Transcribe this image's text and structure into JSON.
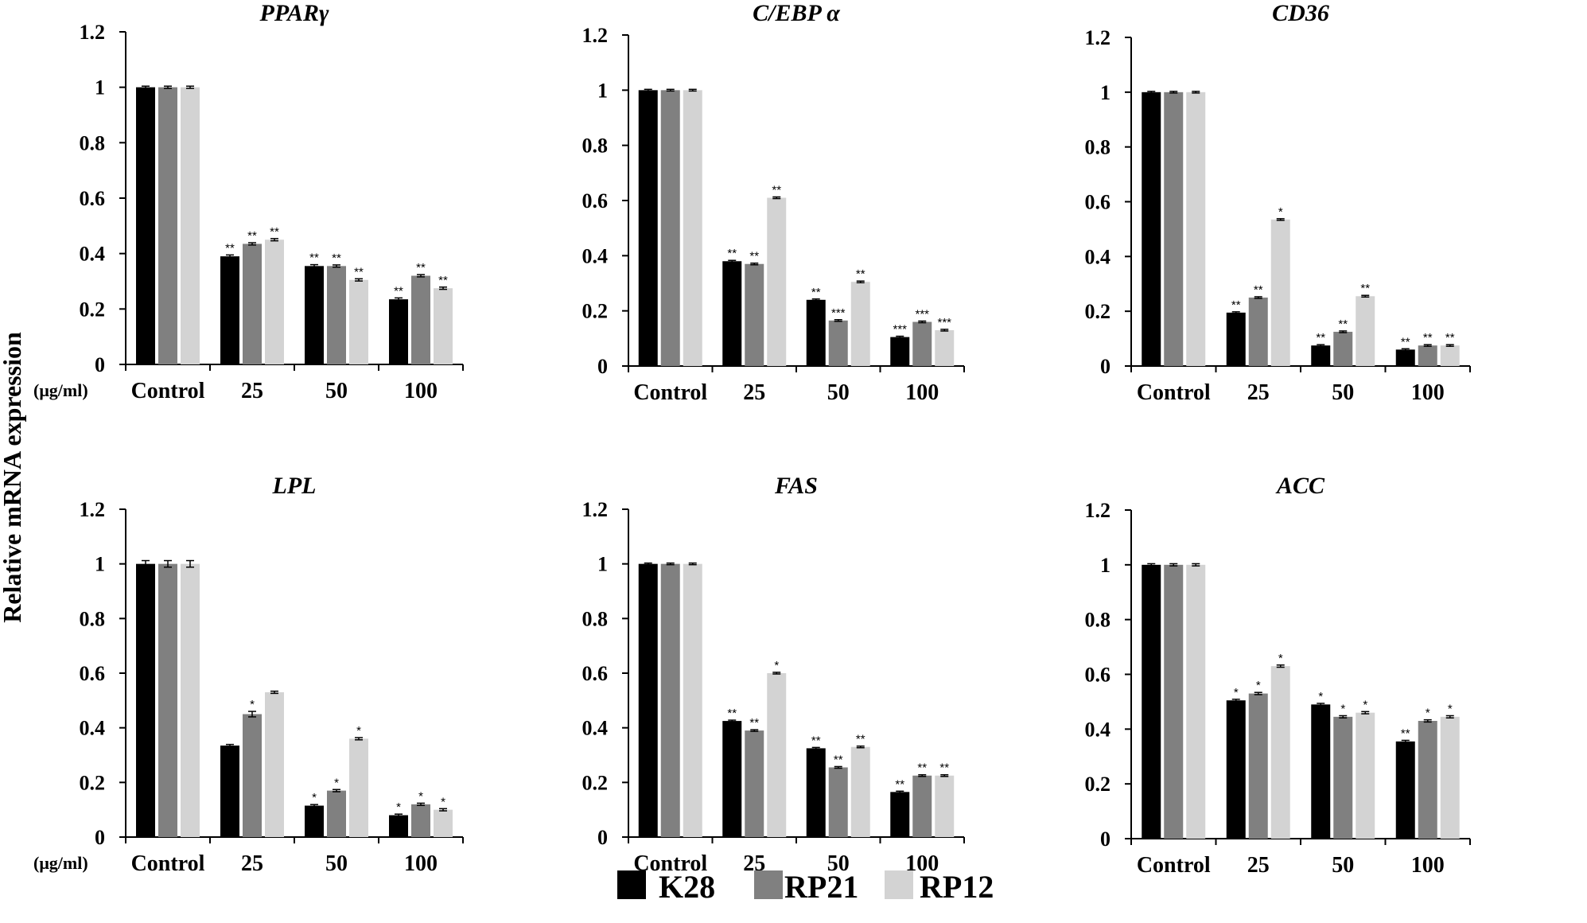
{
  "chart_data": [
    {
      "type": "bar",
      "title": "PPARγ",
      "ylim": [
        0,
        1.2
      ],
      "yticks": [
        "0",
        "0.2",
        "0.4",
        "0.6",
        "0.8",
        "1",
        "1.2"
      ],
      "unit_label": "(μg/ml)",
      "categories": [
        "Control",
        "25",
        "50",
        "100"
      ],
      "series": [
        {
          "name": "K28",
          "values": [
            1.0,
            0.39,
            0.355,
            0.235
          ],
          "errors": [
            0.004,
            0.005,
            0.005,
            0.005
          ],
          "sig": [
            "",
            "**",
            "**",
            "**"
          ]
        },
        {
          "name": "RP21",
          "values": [
            1.0,
            0.435,
            0.355,
            0.32
          ],
          "errors": [
            0.004,
            0.004,
            0.004,
            0.004
          ],
          "sig": [
            "",
            "**",
            "**",
            "**"
          ]
        },
        {
          "name": "RP12",
          "values": [
            1.0,
            0.45,
            0.305,
            0.275
          ],
          "errors": [
            0.004,
            0.004,
            0.004,
            0.004
          ],
          "sig": [
            "",
            "**",
            "**",
            "**"
          ]
        }
      ]
    },
    {
      "type": "bar",
      "title": "C/EBP α",
      "ylim": [
        0,
        1.2
      ],
      "yticks": [
        "0",
        "0.2",
        "0.4",
        "0.6",
        "0.8",
        "1",
        "1.2"
      ],
      "unit_label": "",
      "categories": [
        "Control",
        "25",
        "50",
        "100"
      ],
      "series": [
        {
          "name": "K28",
          "values": [
            1.0,
            0.38,
            0.24,
            0.105
          ],
          "errors": [
            0.003,
            0.003,
            0.003,
            0.003
          ],
          "sig": [
            "",
            "**",
            "**",
            "***"
          ]
        },
        {
          "name": "RP21",
          "values": [
            1.0,
            0.37,
            0.165,
            0.16
          ],
          "errors": [
            0.003,
            0.003,
            0.003,
            0.003
          ],
          "sig": [
            "",
            "**",
            "***",
            "***"
          ]
        },
        {
          "name": "RP12",
          "values": [
            1.0,
            0.61,
            0.305,
            0.13
          ],
          "errors": [
            0.003,
            0.003,
            0.003,
            0.003
          ],
          "sig": [
            "",
            "**",
            "**",
            "***"
          ]
        }
      ]
    },
    {
      "type": "bar",
      "title": "CD36",
      "ylim": [
        0,
        1.2
      ],
      "yticks": [
        "0",
        "0.2",
        "0.4",
        "0.6",
        "0.8",
        "1",
        "1.2"
      ],
      "unit_label": "",
      "categories": [
        "Control",
        "25",
        "50",
        "100"
      ],
      "series": [
        {
          "name": "K28",
          "values": [
            1.0,
            0.195,
            0.075,
            0.06
          ],
          "errors": [
            0.003,
            0.003,
            0.003,
            0.003
          ],
          "sig": [
            "",
            "**",
            "**",
            "**"
          ]
        },
        {
          "name": "RP21",
          "values": [
            1.0,
            0.25,
            0.125,
            0.075
          ],
          "errors": [
            0.003,
            0.003,
            0.003,
            0.003
          ],
          "sig": [
            "",
            "**",
            "**",
            "**"
          ]
        },
        {
          "name": "RP12",
          "values": [
            1.0,
            0.535,
            0.255,
            0.075
          ],
          "errors": [
            0.003,
            0.003,
            0.003,
            0.003
          ],
          "sig": [
            "",
            "*",
            "**",
            "**"
          ]
        }
      ]
    },
    {
      "type": "bar",
      "title": "LPL",
      "ylim": [
        0,
        1.2
      ],
      "yticks": [
        "0",
        "0.2",
        "0.4",
        "0.6",
        "0.8",
        "1",
        "1.2"
      ],
      "unit_label": "(μg/ml)",
      "categories": [
        "Control",
        "25",
        "50",
        "100"
      ],
      "series": [
        {
          "name": "K28",
          "values": [
            1.0,
            0.335,
            0.115,
            0.08
          ],
          "errors": [
            0.012,
            0.004,
            0.004,
            0.004
          ],
          "sig": [
            "",
            "",
            "*",
            "*"
          ]
        },
        {
          "name": "RP21",
          "values": [
            1.0,
            0.45,
            0.17,
            0.12
          ],
          "errors": [
            0.012,
            0.01,
            0.004,
            0.004
          ],
          "sig": [
            "",
            "*",
            "*",
            "*"
          ]
        },
        {
          "name": "RP12",
          "values": [
            1.0,
            0.53,
            0.36,
            0.1
          ],
          "errors": [
            0.012,
            0.004,
            0.004,
            0.004
          ],
          "sig": [
            "",
            "",
            "*",
            "*"
          ]
        }
      ]
    },
    {
      "type": "bar",
      "title": "FAS",
      "ylim": [
        0,
        1.2
      ],
      "yticks": [
        "0",
        "0.2",
        "0.4",
        "0.6",
        "0.8",
        "1",
        "1.2"
      ],
      "unit_label": "",
      "categories": [
        "Control",
        "25",
        "50",
        "100"
      ],
      "series": [
        {
          "name": "K28",
          "values": [
            1.0,
            0.425,
            0.325,
            0.165
          ],
          "errors": [
            0.003,
            0.003,
            0.003,
            0.003
          ],
          "sig": [
            "",
            "**",
            "**",
            "**"
          ]
        },
        {
          "name": "RP21",
          "values": [
            1.0,
            0.39,
            0.255,
            0.225
          ],
          "errors": [
            0.003,
            0.003,
            0.003,
            0.003
          ],
          "sig": [
            "",
            "**",
            "**",
            "**"
          ]
        },
        {
          "name": "RP12",
          "values": [
            1.0,
            0.6,
            0.33,
            0.225
          ],
          "errors": [
            0.003,
            0.003,
            0.003,
            0.003
          ],
          "sig": [
            "",
            "*",
            "**",
            "**"
          ]
        }
      ]
    },
    {
      "type": "bar",
      "title": "ACC",
      "ylim": [
        0,
        1.2
      ],
      "yticks": [
        "0",
        "0.2",
        "0.4",
        "0.6",
        "0.8",
        "1",
        "1.2"
      ],
      "unit_label": "",
      "categories": [
        "Control",
        "25",
        "50",
        "100"
      ],
      "series": [
        {
          "name": "K28",
          "values": [
            1.0,
            0.505,
            0.49,
            0.355
          ],
          "errors": [
            0.004,
            0.004,
            0.004,
            0.004
          ],
          "sig": [
            "",
            "*",
            "*",
            "**"
          ]
        },
        {
          "name": "RP21",
          "values": [
            1.0,
            0.53,
            0.445,
            0.43
          ],
          "errors": [
            0.004,
            0.004,
            0.004,
            0.004
          ],
          "sig": [
            "",
            "*",
            "*",
            "*"
          ]
        },
        {
          "name": "RP12",
          "values": [
            1.0,
            0.63,
            0.46,
            0.445
          ],
          "errors": [
            0.004,
            0.004,
            0.004,
            0.004
          ],
          "sig": [
            "",
            "*",
            "*",
            "*"
          ]
        }
      ]
    }
  ],
  "ylabel": "Relative mRNA expression",
  "legend": [
    {
      "name": "K28",
      "color": "#000000"
    },
    {
      "name": "RP21",
      "color": "#808080"
    },
    {
      "name": "RP12",
      "color": "#d3d3d3"
    }
  ]
}
